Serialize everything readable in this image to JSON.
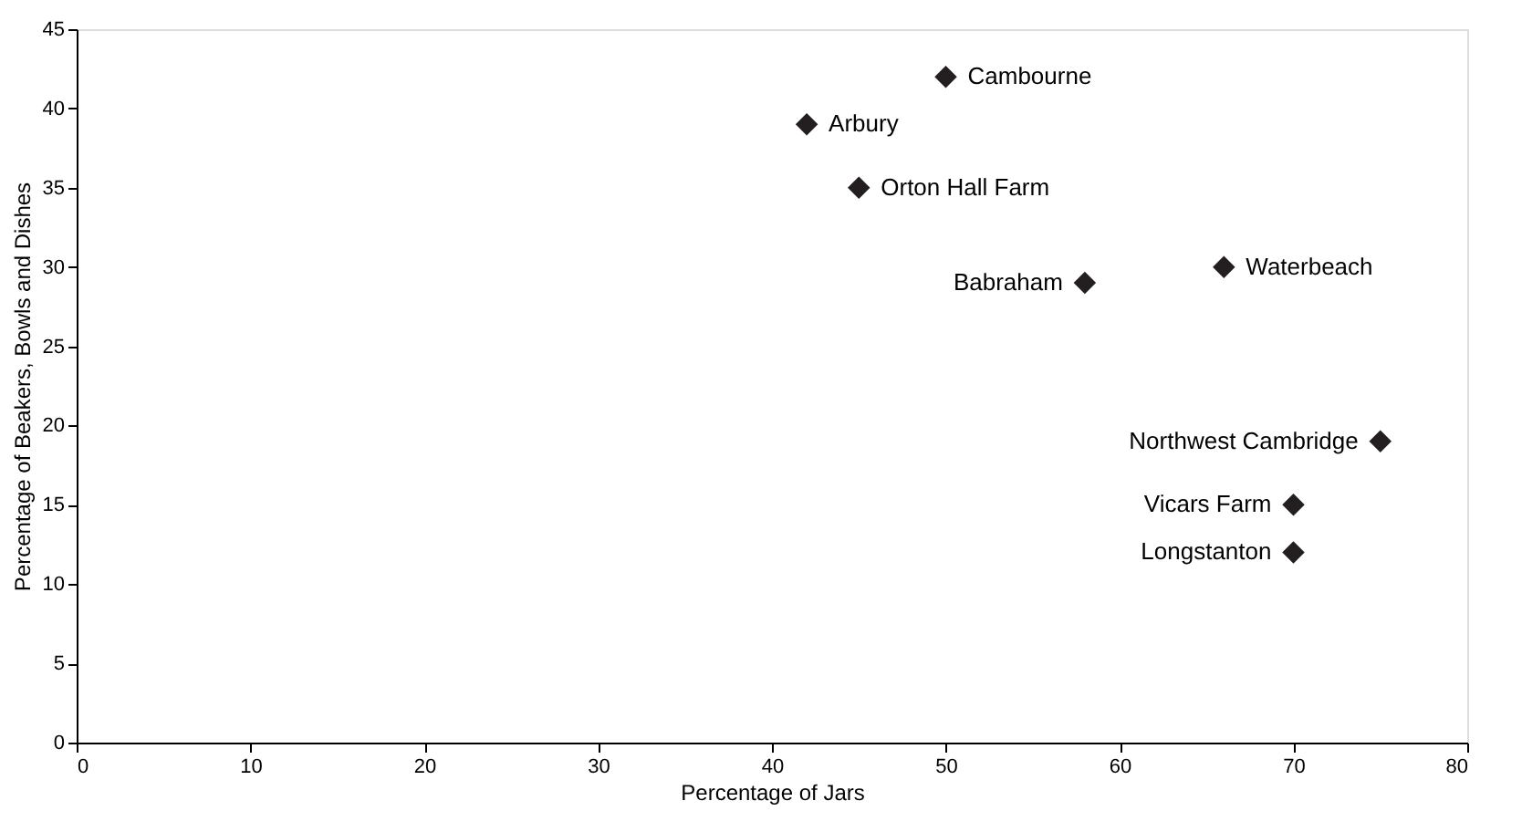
{
  "chart_data": {
    "type": "scatter",
    "xlabel": "Percentage of Jars",
    "ylabel": "Percentage of Beakers, Bowls and Dishes",
    "x": [
      50,
      42,
      45,
      58,
      66,
      75,
      70,
      70
    ],
    "series": [
      {
        "color": "#231f20",
        "values": [
          42,
          39,
          35,
          29,
          30,
          19,
          15,
          12
        ]
      }
    ],
    "annotations": [
      {
        "text": "Cambourne",
        "x": 50,
        "y": 42
      },
      {
        "text": "Arbury",
        "x": 42,
        "y": 39
      },
      {
        "text": "Orton Hall Farm",
        "x": 45,
        "y": 35
      },
      {
        "text": "Babraham",
        "x": 58,
        "y": 29
      },
      {
        "text": "Waterbeach",
        "x": 66,
        "y": 30
      },
      {
        "text": "Northwest Cambridge",
        "x": 75,
        "y": 19
      },
      {
        "text": "Vicars Farm",
        "x": 70,
        "y": 15
      },
      {
        "text": "Longstanton",
        "x": 70,
        "y": 12
      }
    ],
    "xlim": [
      0,
      80
    ],
    "xticks": [
      0,
      10,
      20,
      30,
      40,
      50,
      60,
      70,
      80
    ],
    "ylim": [
      0,
      45
    ],
    "yticks": [
      0,
      5,
      10,
      15,
      20,
      25,
      30,
      35,
      40,
      45
    ],
    "marker": "diamond",
    "grid": false
  }
}
